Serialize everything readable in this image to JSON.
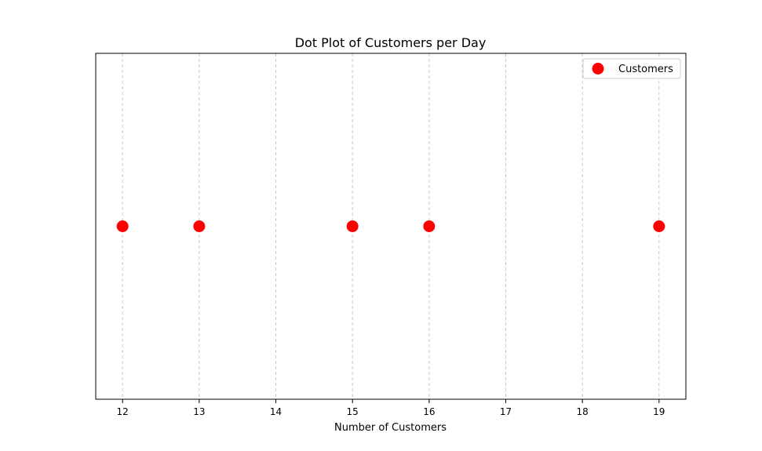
{
  "chart_data": {
    "type": "scatter",
    "title": "Dot Plot of Customers per Day",
    "xlabel": "Number of Customers",
    "ylabel": "",
    "xlim": [
      11.65,
      19.35
    ],
    "ylim": [
      -1,
      1
    ],
    "x_ticks": [
      12,
      13,
      14,
      15,
      16,
      17,
      18,
      19
    ],
    "grid": "vertical dashed",
    "legend_position": "top-right",
    "series": [
      {
        "name": "Customers",
        "color": "#ff0000",
        "x": [
          12,
          13,
          15,
          16,
          19
        ],
        "y": [
          0,
          0,
          0,
          0,
          0
        ]
      }
    ]
  }
}
